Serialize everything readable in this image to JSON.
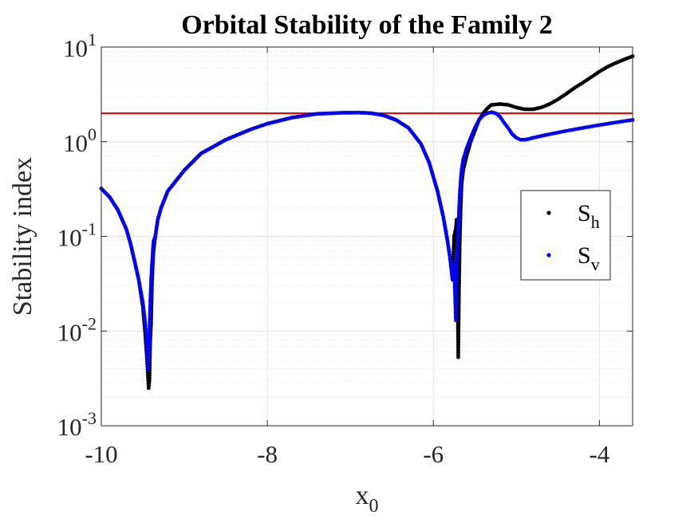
{
  "chart_data": {
    "type": "scatter",
    "title": "Orbital Stability of the Family 2",
    "xlabel": {
      "base": "x",
      "sub": "0"
    },
    "ylabel": "Stability index",
    "xlim": [
      -10,
      -3.6
    ],
    "ylim": [
      0.001,
      10
    ],
    "yscale": "log",
    "grid": true,
    "minor_grid": true,
    "x_ticks": [
      {
        "value": -10,
        "label": "-10"
      },
      {
        "value": -8,
        "label": "-8"
      },
      {
        "value": -6,
        "label": "-6"
      },
      {
        "value": -4,
        "label": "-4"
      }
    ],
    "y_ticks": [
      {
        "value": 0.001,
        "base": "10",
        "exp": "-3"
      },
      {
        "value": 0.01,
        "base": "10",
        "exp": "-2"
      },
      {
        "value": 0.1,
        "base": "10",
        "exp": "-1"
      },
      {
        "value": 1,
        "base": "10",
        "exp": "0"
      },
      {
        "value": 10,
        "base": "10",
        "exp": "1"
      }
    ],
    "reference_line": {
      "y": 2,
      "color": "#ff0000"
    },
    "legend": {
      "position": "right",
      "entries": [
        {
          "base": "S",
          "sub": "h",
          "color": "#000000"
        },
        {
          "base": "S",
          "sub": "v",
          "color": "#0000ff"
        }
      ]
    },
    "series": [
      {
        "key": "Sh",
        "color": "#000000",
        "x": [
          -10.0,
          -9.9,
          -9.8,
          -9.7,
          -9.65,
          -9.6,
          -9.55,
          -9.5,
          -9.47,
          -9.45,
          -9.43,
          -9.42,
          -9.41,
          -9.4,
          -9.39,
          -9.38,
          -9.37,
          -9.35,
          -9.32,
          -9.28,
          -9.2,
          -9.0,
          -8.8,
          -8.5,
          -8.2,
          -8.0,
          -7.7,
          -7.4,
          -7.1,
          -6.9,
          -6.75,
          -6.6,
          -6.45,
          -6.3,
          -6.15,
          -6.05,
          -5.95,
          -5.88,
          -5.83,
          -5.8,
          -5.77,
          -5.75,
          -5.73,
          -5.72,
          -5.71,
          -5.7,
          -5.69,
          -5.68,
          -5.67,
          -5.66,
          -5.64,
          -5.6,
          -5.55,
          -5.5,
          -5.45,
          -5.4,
          -5.35,
          -5.3,
          -5.2,
          -5.1,
          -5.0,
          -4.9,
          -4.8,
          -4.7,
          -4.6,
          -4.5,
          -4.4,
          -4.3,
          -4.2,
          -4.1,
          -4.0,
          -3.9,
          -3.8,
          -3.7,
          -3.6
        ],
        "values": [
          0.32,
          0.26,
          0.19,
          0.12,
          0.085,
          0.055,
          0.035,
          0.018,
          0.009,
          0.005,
          0.0025,
          0.003,
          0.008,
          0.012,
          0.03,
          0.05,
          0.07,
          0.1,
          0.15,
          0.2,
          0.3,
          0.5,
          0.75,
          1.05,
          1.35,
          1.55,
          1.8,
          1.97,
          2.02,
          2.03,
          2.0,
          1.9,
          1.7,
          1.4,
          0.95,
          0.6,
          0.3,
          0.16,
          0.09,
          0.06,
          0.035,
          0.1,
          0.12,
          0.15,
          0.035,
          0.0053,
          0.03,
          0.1,
          0.2,
          0.35,
          0.5,
          0.7,
          1.0,
          1.3,
          1.7,
          2.0,
          2.25,
          2.45,
          2.5,
          2.45,
          2.3,
          2.2,
          2.2,
          2.3,
          2.5,
          2.8,
          3.2,
          3.7,
          4.2,
          4.8,
          5.5,
          6.2,
          6.8,
          7.4,
          8.0
        ]
      },
      {
        "key": "Sv",
        "color": "#0000ff",
        "x": [
          -10.0,
          -9.9,
          -9.8,
          -9.7,
          -9.65,
          -9.6,
          -9.55,
          -9.5,
          -9.47,
          -9.45,
          -9.44,
          -9.43,
          -9.42,
          -9.41,
          -9.4,
          -9.39,
          -9.38,
          -9.37,
          -9.35,
          -9.32,
          -9.28,
          -9.2,
          -9.0,
          -8.8,
          -8.5,
          -8.2,
          -8.0,
          -7.7,
          -7.4,
          -7.1,
          -6.9,
          -6.75,
          -6.6,
          -6.45,
          -6.3,
          -6.15,
          -6.05,
          -5.95,
          -5.88,
          -5.83,
          -5.8,
          -5.77,
          -5.75,
          -5.73,
          -5.72,
          -5.71,
          -5.7,
          -5.69,
          -5.68,
          -5.67,
          -5.66,
          -5.64,
          -5.6,
          -5.55,
          -5.5,
          -5.45,
          -5.4,
          -5.35,
          -5.3,
          -5.25,
          -5.2,
          -5.15,
          -5.1,
          -5.05,
          -5.0,
          -4.95,
          -4.9,
          -4.85,
          -4.8,
          -4.7,
          -4.6,
          -4.5,
          -4.4,
          -4.2,
          -4.0,
          -3.8,
          -3.6
        ],
        "values": [
          0.32,
          0.26,
          0.19,
          0.12,
          0.085,
          0.055,
          0.035,
          0.02,
          0.012,
          0.007,
          0.004,
          0.006,
          0.01,
          0.02,
          0.035,
          0.05,
          0.07,
          0.09,
          0.1,
          0.15,
          0.2,
          0.3,
          0.5,
          0.75,
          1.05,
          1.35,
          1.55,
          1.8,
          1.97,
          2.02,
          2.03,
          2.0,
          1.9,
          1.7,
          1.4,
          0.95,
          0.6,
          0.3,
          0.16,
          0.09,
          0.06,
          0.035,
          0.05,
          0.013,
          0.055,
          0.08,
          0.12,
          0.2,
          0.3,
          0.4,
          0.5,
          0.65,
          0.85,
          1.1,
          1.4,
          1.7,
          1.9,
          2.0,
          2.05,
          2.0,
          1.85,
          1.6,
          1.4,
          1.2,
          1.1,
          1.05,
          1.05,
          1.07,
          1.1,
          1.15,
          1.2,
          1.25,
          1.3,
          1.4,
          1.5,
          1.6,
          1.7
        ]
      }
    ]
  }
}
